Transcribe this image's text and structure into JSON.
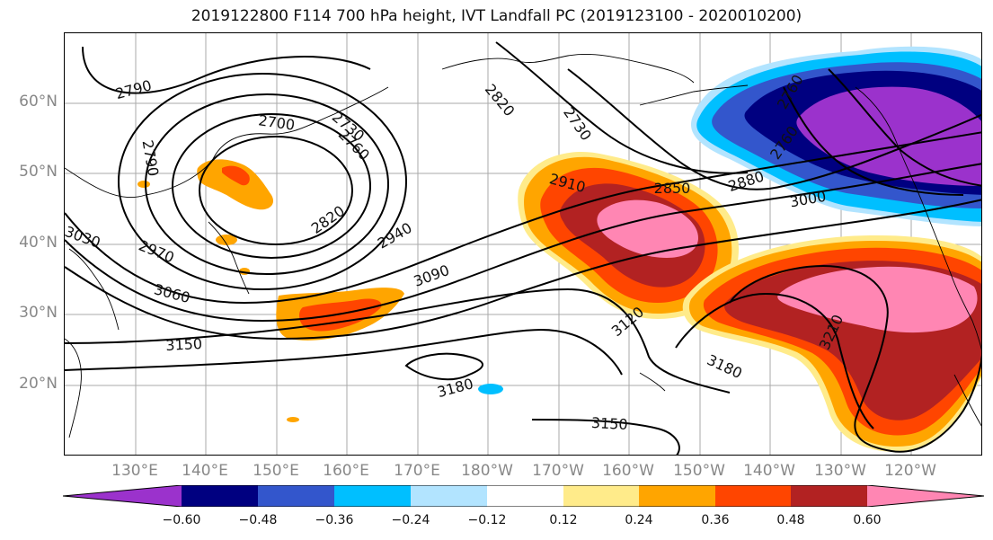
{
  "title": "2019122800 F114 700 hPa height, IVT Landfall PC (2019123100 - 2020010200)",
  "lat_labels": [
    "60°N",
    "50°N",
    "40°N",
    "30°N",
    "20°N"
  ],
  "lon_labels": [
    "130°E",
    "140°E",
    "150°E",
    "160°E",
    "170°E",
    "180°W",
    "170°W",
    "160°W",
    "150°W",
    "140°W",
    "130°W",
    "120°W"
  ],
  "contour_labels": [
    "2790",
    "2700",
    "2730",
    "2760",
    "2790",
    "2820",
    "2730",
    "2910",
    "2850",
    "2880",
    "2760",
    "2760",
    "3000",
    "2820",
    "2940",
    "3030",
    "2970",
    "3060",
    "3090",
    "3120",
    "3150",
    "3180",
    "3180",
    "3210",
    "3150"
  ],
  "colorbar": {
    "colors": [
      "#9b32cc",
      "#000080",
      "#3356cc",
      "#00bfff",
      "#b2e4ff",
      "#ffffff",
      "#ffeb8a",
      "#ffa500",
      "#ff4500",
      "#b22222",
      "#ff86b3"
    ],
    "tick_labels": [
      "−0.60",
      "−0.48",
      "−0.36",
      "−0.24",
      "−0.12",
      "0.12",
      "0.24",
      "0.36",
      "0.48",
      "0.60"
    ]
  }
}
